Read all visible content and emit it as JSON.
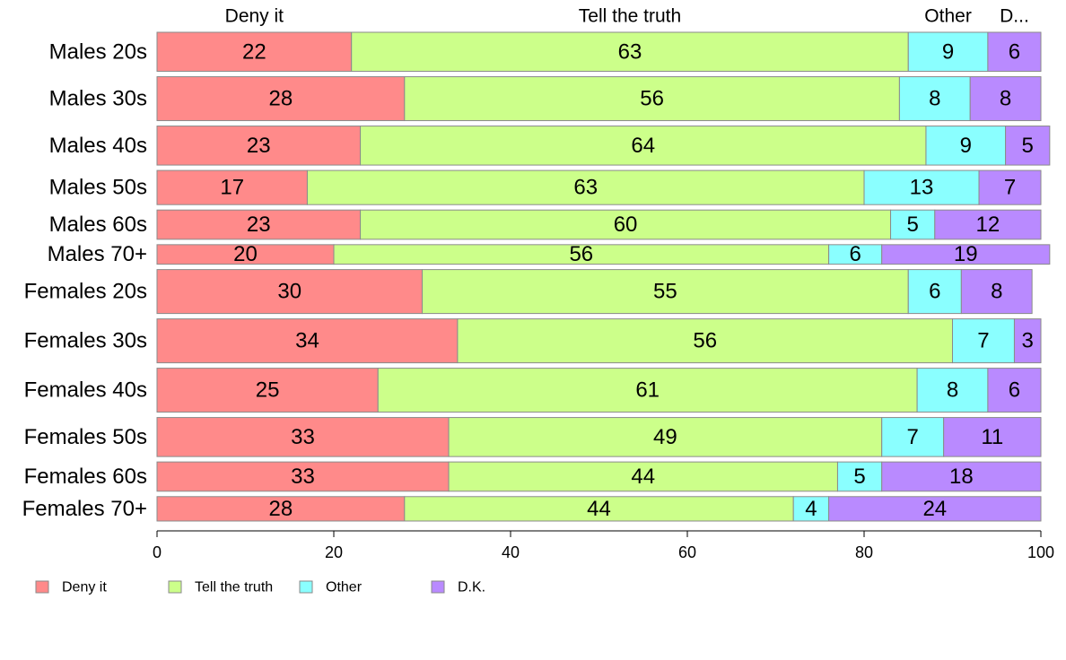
{
  "chart_data": {
    "type": "bar",
    "orientation": "horizontal",
    "stacked": true,
    "percent_stacked": true,
    "categories": [
      "Males 20s",
      "Males 30s",
      "Males 40s",
      "Males 50s",
      "Males 60s",
      "Males 70+",
      "Females 20s",
      "Females 30s",
      "Females 40s",
      "Females 50s",
      "Females 60s",
      "Females 70+"
    ],
    "series": [
      {
        "name": "Deny it",
        "color": "#ff8a8a",
        "values": [
          22,
          28,
          23,
          17,
          23,
          20,
          30,
          34,
          25,
          33,
          33,
          28
        ]
      },
      {
        "name": "Tell the truth",
        "color": "#ccff8a",
        "values": [
          63,
          56,
          64,
          63,
          60,
          56,
          55,
          56,
          61,
          49,
          44,
          44
        ]
      },
      {
        "name": "Other",
        "color": "#8affff",
        "values": [
          9,
          8,
          9,
          13,
          5,
          6,
          6,
          7,
          8,
          7,
          5,
          4
        ]
      },
      {
        "name": "D.K.",
        "color": "#b98aff",
        "values": [
          6,
          8,
          5,
          7,
          12,
          19,
          8,
          3,
          6,
          11,
          18,
          24
        ]
      }
    ],
    "row_weights": [
      8,
      9,
      8,
      7,
      6,
      4,
      9,
      9,
      9,
      8,
      6,
      5
    ],
    "top_labels": [
      "Deny it",
      "Tell the truth",
      "Other",
      "D..."
    ],
    "xlim": [
      0,
      100
    ],
    "xticks": [
      0,
      20,
      40,
      60,
      80,
      100
    ],
    "xlabel": "",
    "ylabel": "",
    "grid": false,
    "legend": {
      "position": "bottom-left",
      "entries": [
        "Deny it",
        "Tell the truth",
        "Other",
        "D.K."
      ]
    }
  }
}
